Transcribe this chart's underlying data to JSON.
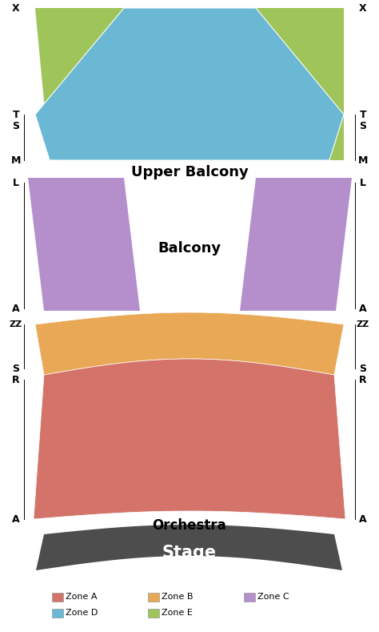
{
  "bg_color": "#ffffff",
  "zone_a_color": "#d4736a",
  "zone_b_color": "#e8a855",
  "zone_c_color": "#b58fcc",
  "zone_d_color": "#6ab8d4",
  "zone_e_color": "#9ec45a",
  "stage_color": "#4d4d4d",
  "stage_text": "Stage",
  "stage_text_color": "#ffffff",
  "orchestra_text": "Orchestra",
  "upper_balcony_text": "Upper Balcony",
  "balcony_text": "Balcony",
  "legend": [
    {
      "label": "Zone A",
      "color": "#d4736a"
    },
    {
      "label": "Zone B",
      "color": "#e8a855"
    },
    {
      "label": "Zone C",
      "color": "#b58fcc"
    },
    {
      "label": "Zone D",
      "color": "#6ab8d4"
    },
    {
      "label": "Zone E",
      "color": "#9ec45a"
    }
  ]
}
